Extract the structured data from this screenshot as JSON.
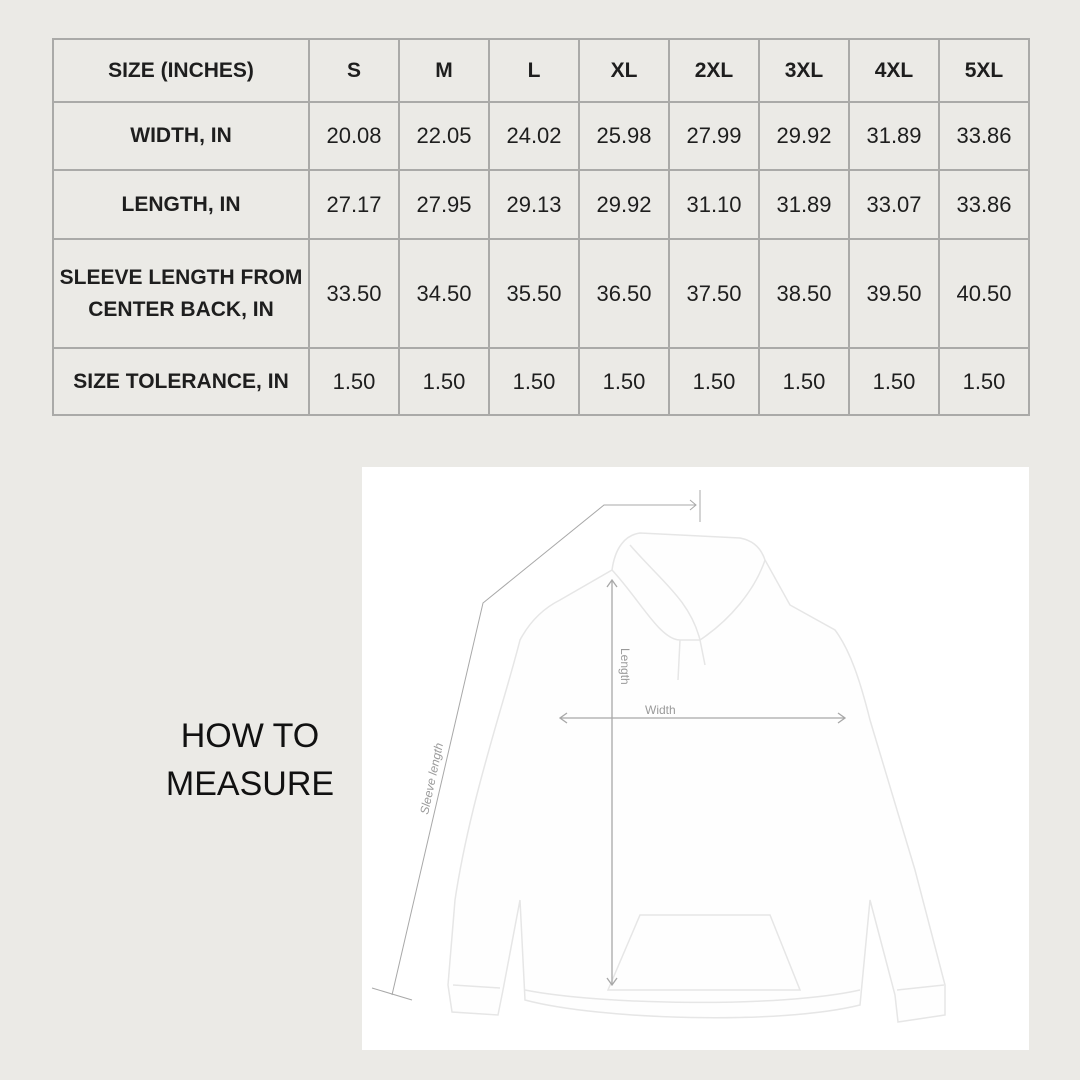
{
  "size_chart": {
    "header": [
      "SIZE (INCHES)",
      "S",
      "M",
      "L",
      "XL",
      "2XL",
      "3XL",
      "4XL",
      "5XL"
    ],
    "rows": [
      {
        "label": "WIDTH, IN",
        "values": [
          "20.08",
          "22.05",
          "24.02",
          "25.98",
          "27.99",
          "29.92",
          "31.89",
          "33.86"
        ]
      },
      {
        "label": "LENGTH, IN",
        "values": [
          "27.17",
          "27.95",
          "29.13",
          "29.92",
          "31.10",
          "31.89",
          "33.07",
          "33.86"
        ]
      },
      {
        "label": "SLEEVE LENGTH FROM CENTER BACK, IN",
        "values": [
          "33.50",
          "34.50",
          "35.50",
          "36.50",
          "37.50",
          "38.50",
          "39.50",
          "40.50"
        ]
      },
      {
        "label": "SIZE TOLERANCE, IN",
        "values": [
          "1.50",
          "1.50",
          "1.50",
          "1.50",
          "1.50",
          "1.50",
          "1.50",
          "1.50"
        ]
      }
    ]
  },
  "how_to_measure": {
    "title": "HOW TO MEASURE",
    "labels": {
      "length": "Length",
      "width": "Width",
      "sleeve": "Sleeve length"
    }
  },
  "colors": {
    "background": "#ebeae6",
    "border": "#aaaaa8",
    "text": "#1e1e1e",
    "measure_line": "#a8a8a8"
  }
}
